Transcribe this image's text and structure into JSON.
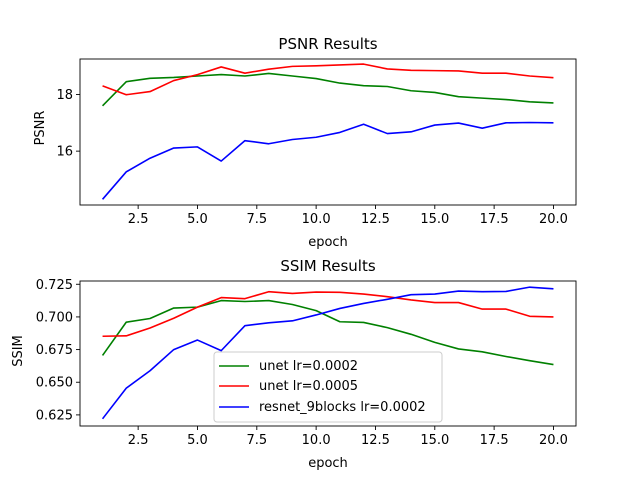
{
  "chart_data": [
    {
      "type": "line",
      "title": "PSNR Results",
      "xlabel": "epoch",
      "ylabel": "PSNR",
      "xlim": [
        0.05,
        20.95
      ],
      "ylim": [
        14.1,
        19.25
      ],
      "xticks": [
        2.5,
        5.0,
        7.5,
        10.0,
        12.5,
        15.0,
        17.5,
        20.0
      ],
      "xtick_labels": [
        "2.5",
        "5.0",
        "7.5",
        "10.0",
        "12.5",
        "15.0",
        "17.5",
        "20.0"
      ],
      "yticks": [
        16,
        18
      ],
      "ytick_labels": [
        "16",
        "18"
      ],
      "grid": false,
      "x": [
        1,
        2,
        3,
        4,
        5,
        6,
        7,
        8,
        9,
        10,
        11,
        12,
        13,
        14,
        15,
        16,
        17,
        18,
        19,
        20
      ],
      "series": [
        {
          "name": "unet lr=0.0002",
          "color": "#008000",
          "values": [
            17.6,
            18.45,
            18.57,
            18.6,
            18.65,
            18.7,
            18.65,
            18.74,
            18.65,
            18.56,
            18.4,
            18.31,
            18.28,
            18.13,
            18.07,
            17.92,
            17.87,
            17.82,
            17.74,
            17.7
          ]
        },
        {
          "name": "unet lr=0.0005",
          "color": "#ff0000",
          "values": [
            18.3,
            17.99,
            18.1,
            18.49,
            18.7,
            18.97,
            18.75,
            18.89,
            18.99,
            19.01,
            19.04,
            19.07,
            18.9,
            18.85,
            18.84,
            18.83,
            18.75,
            18.75,
            18.65,
            18.59
          ]
        },
        {
          "name": "resnet_9blocks lr=0.0002",
          "color": "#0000ff",
          "values": [
            14.3,
            15.27,
            15.75,
            16.11,
            16.15,
            15.65,
            16.37,
            16.26,
            16.41,
            16.49,
            16.66,
            16.95,
            16.62,
            16.68,
            16.92,
            16.99,
            16.81,
            17.0,
            17.01,
            17.0
          ]
        }
      ]
    },
    {
      "type": "line",
      "title": "SSIM Results",
      "xlabel": "epoch",
      "ylabel": "SSIM",
      "xlim": [
        0.05,
        20.95
      ],
      "ylim": [
        0.6165,
        0.7275
      ],
      "xticks": [
        2.5,
        5.0,
        7.5,
        10.0,
        12.5,
        15.0,
        17.5,
        20.0
      ],
      "xtick_labels": [
        "2.5",
        "5.0",
        "7.5",
        "10.0",
        "12.5",
        "15.0",
        "17.5",
        "20.0"
      ],
      "yticks": [
        0.625,
        0.65,
        0.675,
        0.7,
        0.725
      ],
      "ytick_labels": [
        "0.625",
        "0.650",
        "0.675",
        "0.700",
        "0.725"
      ],
      "grid": false,
      "legend": "lower-center",
      "x": [
        1,
        2,
        3,
        4,
        5,
        6,
        7,
        8,
        9,
        10,
        11,
        12,
        13,
        14,
        15,
        16,
        17,
        18,
        19,
        20
      ],
      "series": [
        {
          "name": "unet lr=0.0002",
          "color": "#008000",
          "values": [
            0.6705,
            0.696,
            0.6988,
            0.7068,
            0.7075,
            0.7125,
            0.7118,
            0.7125,
            0.7095,
            0.7048,
            0.6963,
            0.6958,
            0.6918,
            0.6867,
            0.6805,
            0.6755,
            0.6733,
            0.6697,
            0.6665,
            0.6635
          ]
        },
        {
          "name": "unet lr=0.0005",
          "color": "#ff0000",
          "values": [
            0.6852,
            0.6855,
            0.6915,
            0.699,
            0.7075,
            0.7148,
            0.714,
            0.7193,
            0.718,
            0.719,
            0.7188,
            0.7175,
            0.7155,
            0.713,
            0.711,
            0.711,
            0.706,
            0.706,
            0.7005,
            0.7
          ]
        },
        {
          "name": "resnet_9blocks lr=0.0002",
          "color": "#0000ff",
          "values": [
            0.622,
            0.6455,
            0.6588,
            0.675,
            0.6823,
            0.6742,
            0.6933,
            0.6955,
            0.697,
            0.7015,
            0.7065,
            0.7103,
            0.7135,
            0.717,
            0.7175,
            0.7198,
            0.7193,
            0.7195,
            0.7228,
            0.7215
          ]
        }
      ]
    }
  ]
}
